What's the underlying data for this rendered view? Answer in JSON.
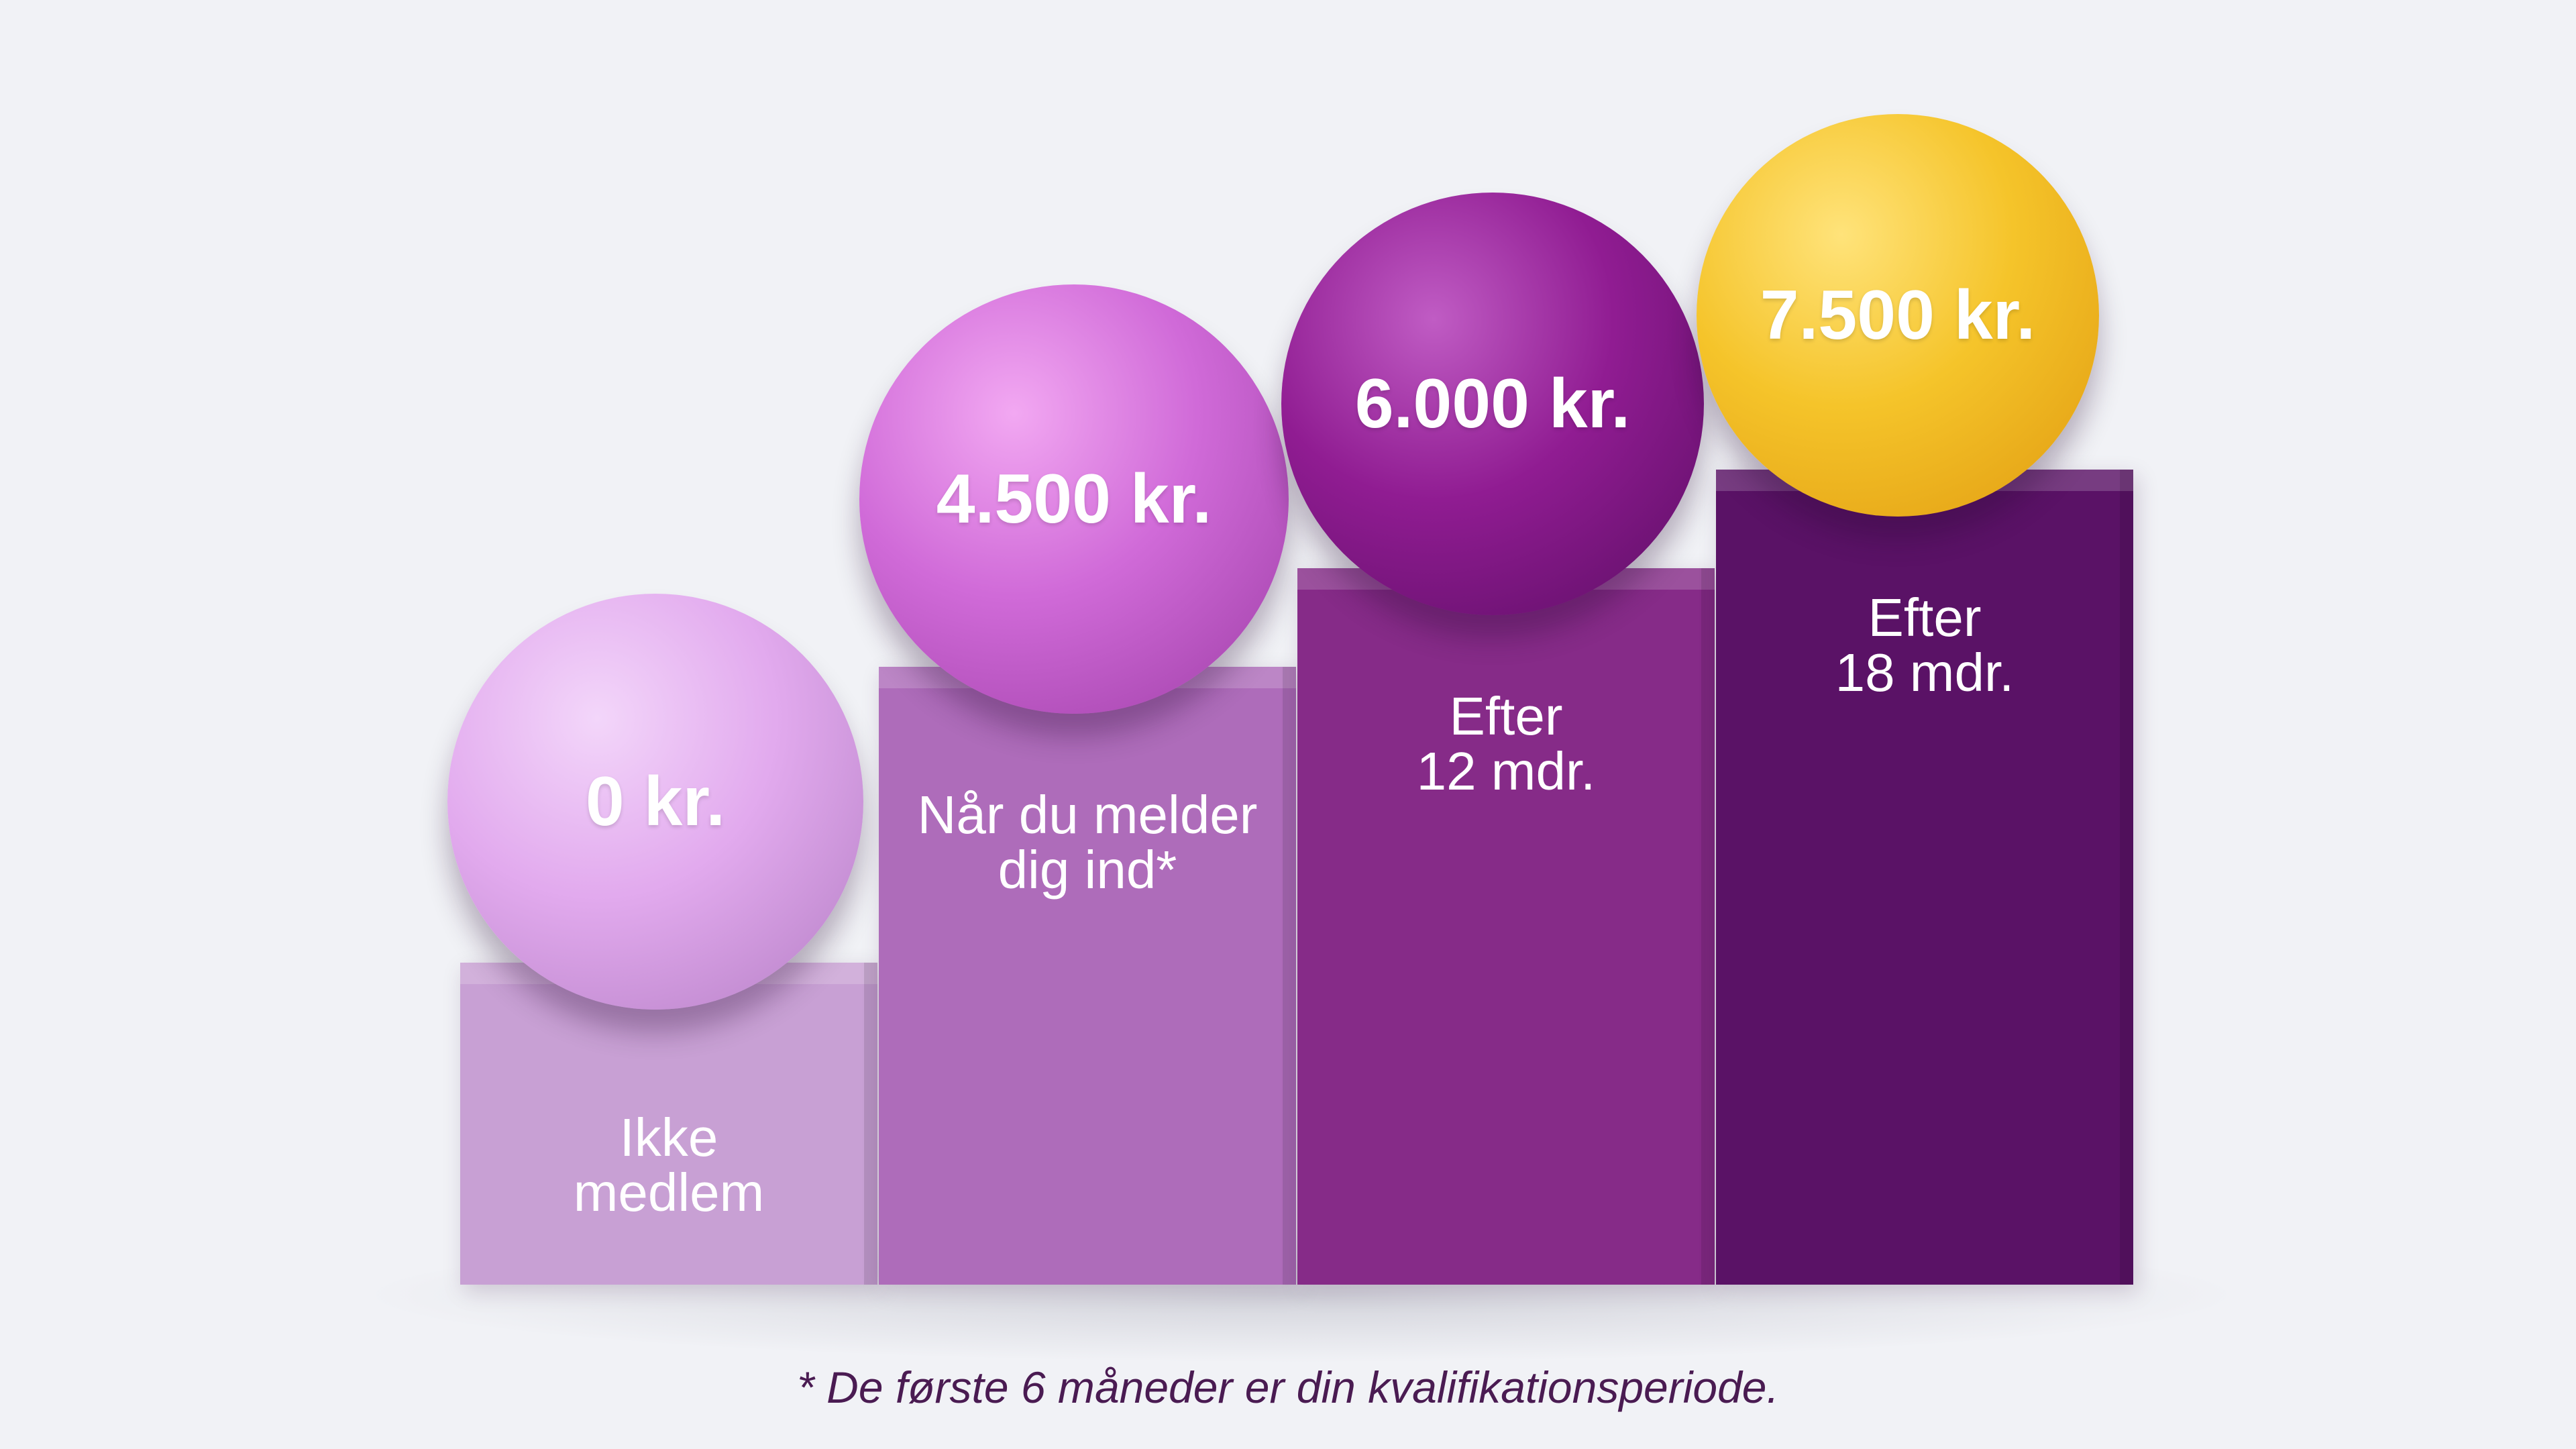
{
  "chart_data": {
    "type": "bar",
    "categories": [
      "Ikke\nmedlem",
      "Når du melder\ndig ind*",
      "Efter\n12 mdr.",
      "Efter\n18 mdr."
    ],
    "values": [
      0,
      4500,
      6000,
      7500
    ],
    "value_labels": [
      "0 kr.",
      "4.500 kr.",
      "6.000 kr.",
      "7.500 kr."
    ],
    "title": "",
    "xlabel": "",
    "ylabel": "",
    "ylim": [
      0,
      7500
    ],
    "grid": false,
    "colors": {
      "blocks": [
        "#c8a0d4",
        "#ae6cba",
        "#862b88",
        "#5a1266"
      ],
      "balls": [
        "#e2aaee",
        "#d06ad8",
        "#901c92",
        "#f5c42a"
      ],
      "ball_highlights": [
        "#f3d6fa",
        "#f2a8f2",
        "#c05cc4",
        "#ffe37a"
      ],
      "ball_shades": [
        "#b47ec4",
        "#9e3ea6",
        "#5c0e64",
        "#e09a10"
      ]
    }
  },
  "footnote": "* De første 6 måneder er din kvalifikationsperiode."
}
